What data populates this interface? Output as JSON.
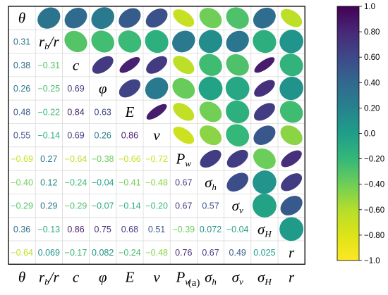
{
  "chart_data": {
    "type": "heatmap",
    "variables": [
      "θ",
      "r_b/r",
      "c",
      "φ",
      "E",
      "v",
      "P_w",
      "σ_h",
      "σ_v",
      "σ_H",
      "r"
    ],
    "variable_labels": [
      {
        "base": "θ",
        "sub": ""
      },
      {
        "base": "r",
        "sub": "b",
        "suffix": "/r"
      },
      {
        "base": "c",
        "sub": ""
      },
      {
        "base": "φ",
        "sub": ""
      },
      {
        "base": "E",
        "sub": ""
      },
      {
        "base": "v",
        "sub": ""
      },
      {
        "base": "P",
        "sub": "w"
      },
      {
        "base": "σ",
        "sub": "h"
      },
      {
        "base": "σ",
        "sub": "v"
      },
      {
        "base": "σ",
        "sub": "H"
      },
      {
        "base": "r",
        "sub": ""
      }
    ],
    "lower_triangle_labels": [
      [],
      [
        "0.31"
      ],
      [
        "0.38",
        "−0.31"
      ],
      [
        "0.26",
        "−0.25",
        "0.69"
      ],
      [
        "0.48",
        "−0.22",
        "0.84",
        "0.63"
      ],
      [
        "0.55",
        "−0.14",
        "0.69",
        "0.26",
        "0.86"
      ],
      [
        "−0.69",
        "0.27",
        "−0.64",
        "−0.38",
        "−0.66",
        "−0.72"
      ],
      [
        "−0.40",
        "0.12",
        "−0.24",
        "−0.04",
        "−0.41",
        "−0.48",
        "0.67"
      ],
      [
        "−0.29",
        "0.29",
        "−0.29",
        "−0.07",
        "−0.14",
        "−0.20",
        "0.67",
        "0.57"
      ],
      [
        "0.36",
        "−0.13",
        "0.86",
        "0.75",
        "0.68",
        "0.51",
        "−0.39",
        "0.072",
        "−0.04"
      ],
      [
        "−0.64",
        "0.069",
        "−0.17",
        "0.082",
        "−0.24",
        "−0.48",
        "0.76",
        "0.67",
        "0.49",
        "0.025"
      ]
    ],
    "correlation_matrix": [
      [
        1,
        0.31,
        0.38,
        0.26,
        0.48,
        0.55,
        -0.69,
        -0.4,
        -0.29,
        0.36,
        -0.64
      ],
      [
        0.31,
        1,
        -0.31,
        -0.25,
        -0.22,
        -0.14,
        0.27,
        0.12,
        0.29,
        -0.13,
        0.069
      ],
      [
        0.38,
        -0.31,
        1,
        0.69,
        0.84,
        0.69,
        -0.64,
        -0.24,
        -0.29,
        0.86,
        -0.17
      ],
      [
        0.26,
        -0.25,
        0.69,
        1,
        0.63,
        0.26,
        -0.38,
        -0.04,
        -0.07,
        0.75,
        0.082
      ],
      [
        0.48,
        -0.22,
        0.84,
        0.63,
        1,
        0.86,
        -0.66,
        -0.41,
        -0.14,
        0.68,
        -0.24
      ],
      [
        0.55,
        -0.14,
        0.69,
        0.26,
        0.86,
        1,
        -0.72,
        -0.48,
        -0.2,
        0.51,
        -0.48
      ],
      [
        -0.69,
        0.27,
        -0.64,
        -0.38,
        -0.66,
        -0.72,
        1,
        0.67,
        0.67,
        -0.39,
        0.76
      ],
      [
        -0.4,
        0.12,
        -0.24,
        -0.04,
        -0.41,
        -0.48,
        0.67,
        1,
        0.57,
        0.072,
        0.67
      ],
      [
        -0.29,
        0.29,
        -0.29,
        -0.07,
        -0.14,
        -0.2,
        0.67,
        0.57,
        1,
        -0.04,
        0.49
      ],
      [
        0.36,
        -0.13,
        0.86,
        0.75,
        0.68,
        0.51,
        -0.39,
        0.072,
        -0.04,
        1,
        0.025
      ],
      [
        -0.64,
        0.069,
        -0.17,
        0.082,
        -0.24,
        -0.48,
        0.76,
        0.67,
        0.49,
        0.025,
        1
      ]
    ],
    "upper_triangle": "ellipses",
    "lower_triangle": "numbers",
    "colormap": "viridis_r",
    "colorbar": {
      "range": [
        -1.0,
        1.0
      ],
      "ticks": [
        1.0,
        0.8,
        0.6,
        0.4,
        0.2,
        0.0,
        -0.2,
        -0.4,
        -0.6,
        -0.8,
        -1.0
      ],
      "tick_labels": [
        "1.0",
        "0.80",
        "0.60",
        "0.40",
        "0.20",
        "0.0",
        "−0.20",
        "−0.40",
        "−0.60",
        "−0.80",
        "−1.0"
      ],
      "position": "right"
    },
    "grid": true
  },
  "caption": "(a)"
}
